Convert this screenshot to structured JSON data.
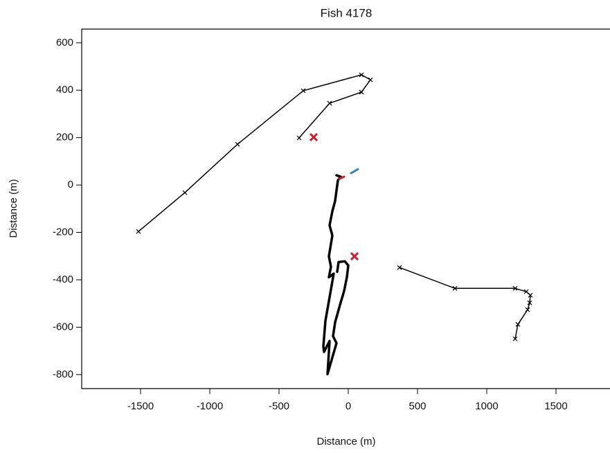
{
  "chart_data": {
    "type": "line",
    "title": "Fish 4178",
    "x_label": "Distance (m)",
    "y_label": "Distance (m)",
    "xlim": [
      -1925,
      1890
    ],
    "ylim": [
      -859,
      658
    ],
    "xticks": [
      -1500,
      -1000,
      -500,
      0,
      500,
      1000,
      1500
    ],
    "yticks": [
      -800,
      -600,
      -400,
      -200,
      0,
      200,
      400,
      600
    ],
    "series": [
      {
        "color": "#000000",
        "line_width": 1.5,
        "marker": "x",
        "x": [
          -1515,
          -1180,
          -800,
          -325,
          95,
          160,
          95,
          -135,
          -355
        ],
        "y": [
          -196,
          -32,
          172,
          398,
          465,
          444,
          392,
          345,
          199
        ]
      },
      {
        "color": "#c8202f",
        "line_width": 0,
        "marker": "X",
        "x": [
          -250
        ],
        "y": [
          202
        ]
      },
      {
        "color": "#000000",
        "line_width": 1.5,
        "marker": "x",
        "x": [
          370,
          770,
          1205,
          1285,
          1315,
          1310,
          1295,
          1225,
          1205
        ],
        "y": [
          -348,
          -436,
          -436,
          -450,
          -465,
          -497,
          -526,
          -588,
          -649
        ]
      },
      {
        "color": "#c8202f",
        "line_width": 0,
        "marker": "X",
        "x": [
          45
        ],
        "y": [
          -301
        ]
      },
      {
        "color": "#000000",
        "line_width": 3.5,
        "marker": "none",
        "x": [
          -85,
          -55,
          -75,
          -95,
          -115,
          -135,
          -115,
          -140,
          -125,
          -140,
          -105,
          -165,
          -180,
          -175,
          -135,
          -150,
          -85,
          -110,
          -95,
          -60,
          -30,
          -10,
          0,
          -25,
          -70,
          -80
        ],
        "y": [
          41,
          35,
          20,
          -67,
          -111,
          -170,
          -213,
          -301,
          -345,
          -389,
          -374,
          -573,
          -681,
          -704,
          -658,
          -798,
          -667,
          -638,
          -579,
          -506,
          -447,
          -389,
          -339,
          -322,
          -325,
          -366
        ]
      },
      {
        "color": "#c8202f",
        "line_width": 3,
        "marker": "none",
        "x": [
          -65,
          -30
        ],
        "y": [
          26,
          35
        ]
      },
      {
        "color": "#3b7fc4",
        "line_width": 3,
        "marker": "none",
        "x": [
          20,
          70
        ],
        "y": [
          50,
          67
        ]
      }
    ]
  }
}
